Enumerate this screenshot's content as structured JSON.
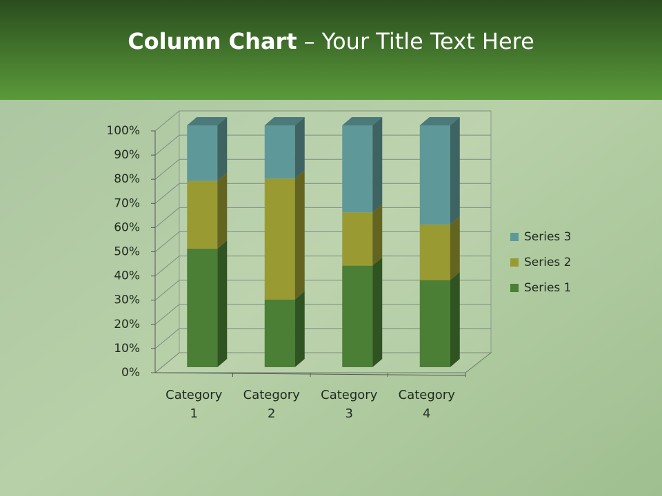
{
  "chart_data": {
    "type": "stacked_bar_3d",
    "title_bold": "Column Chart",
    "title_rest": "– Your Title Text Here",
    "categories": [
      [
        "Category",
        "1"
      ],
      [
        "Category",
        "2"
      ],
      [
        "Category",
        "3"
      ],
      [
        "Category",
        "4"
      ]
    ],
    "series": [
      {
        "name": "Series 1",
        "color": "#4a7f35",
        "values": [
          49,
          28,
          42,
          36
        ]
      },
      {
        "name": "Series 2",
        "color": "#9a9a33",
        "values": [
          28,
          50,
          22,
          23
        ]
      },
      {
        "name": "Series 3",
        "color": "#5f9898",
        "values": [
          23,
          22,
          36,
          41
        ]
      }
    ],
    "ylim": [
      0,
      100
    ],
    "yticks": [
      {
        "value": 0,
        "label": "0%"
      },
      {
        "value": 10,
        "label": "10%"
      },
      {
        "value": 20,
        "label": "20%"
      },
      {
        "value": 30,
        "label": "30%"
      },
      {
        "value": 40,
        "label": "40%"
      },
      {
        "value": 50,
        "label": "50%"
      },
      {
        "value": 60,
        "label": "60%"
      },
      {
        "value": 70,
        "label": "70%"
      },
      {
        "value": 80,
        "label": "80%"
      },
      {
        "value": 90,
        "label": "90%"
      },
      {
        "value": 100,
        "label": "100%"
      }
    ],
    "grid": true,
    "legend": "right"
  }
}
